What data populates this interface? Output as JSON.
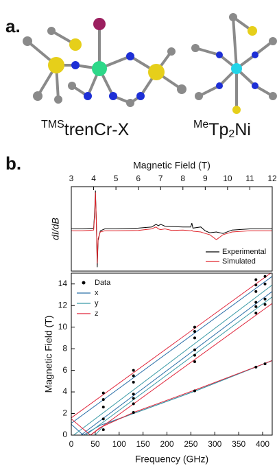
{
  "panels": {
    "a": "a.",
    "b": "b."
  },
  "labels": {
    "left": {
      "sup": "TMS",
      "main": "trenCr-X"
    },
    "right": {
      "sup": "Me",
      "main": "Tp",
      "sub": "2",
      "tail": "Ni"
    }
  },
  "chart_data": [
    {
      "type": "line",
      "xlabel": "Magnetic Field (T)",
      "ylabel": "dI/dB",
      "x": [
        3,
        3.5,
        4.0,
        4.05,
        4.08,
        4.12,
        4.16,
        4.2,
        4.3,
        4.5,
        5,
        6,
        6.6,
        6.8,
        6.9,
        7.0,
        7.2,
        7.5,
        8,
        8.35,
        8.4,
        8.45,
        8.8,
        9.0,
        9.2,
        9.5,
        9.8,
        10.2,
        11,
        12
      ],
      "series": [
        {
          "name": "Experimental",
          "color": "#000000",
          "values": [
            0,
            0,
            0.02,
            0.5,
            1.0,
            0.2,
            -1.0,
            -0.3,
            -0.05,
            0,
            0,
            0.02,
            0.05,
            0.12,
            0.08,
            0.12,
            0.07,
            0.06,
            0.05,
            0.05,
            0.15,
            0.02,
            0.05,
            -0.05,
            -0.1,
            -0.08,
            -0.12,
            -0.03,
            0,
            0
          ]
        },
        {
          "name": "Simulated",
          "color": "#e0262c",
          "values": [
            -0.05,
            -0.05,
            -0.03,
            0.4,
            0.95,
            0.2,
            -0.9,
            -0.25,
            -0.08,
            -0.05,
            -0.05,
            -0.04,
            0.0,
            0.05,
            0.0,
            -0.02,
            0.0,
            -0.04,
            -0.03,
            -0.05,
            -0.04,
            -0.06,
            -0.08,
            -0.12,
            -0.15,
            -0.28,
            -0.15,
            -0.08,
            -0.05,
            -0.05
          ]
        }
      ],
      "xlim": [
        3,
        12
      ],
      "xticks": [
        3,
        4,
        5,
        6,
        7,
        8,
        9,
        10,
        11,
        12
      ],
      "ylim": [
        -1.1,
        1.1
      ],
      "legend": "lower-right"
    },
    {
      "type": "scatter",
      "xlabel": "Frequency (GHz)",
      "ylabel": "Magnetic Field (T)",
      "series": [
        {
          "name": "Data",
          "color": "#000000",
          "x": [
            67,
            67,
            67,
            67,
            67,
            130,
            130,
            130,
            130,
            130,
            130,
            130,
            258,
            258,
            258,
            258,
            258,
            258,
            258,
            386,
            386,
            386,
            386,
            386,
            386,
            386,
            405,
            405,
            405,
            405,
            405
          ],
          "values": [
            3.9,
            3.3,
            2.6,
            1.5,
            0.5,
            6.0,
            5.5,
            4.9,
            3.8,
            3.4,
            2.9,
            2.1,
            10.0,
            9.6,
            9.0,
            7.9,
            7.4,
            6.8,
            4.1,
            14.4,
            13.9,
            13.3,
            12.3,
            11.9,
            11.3,
            6.3,
            14.7,
            14.0,
            12.6,
            12.1,
            6.6
          ]
        },
        {
          "name": "x",
          "color": "#2b6fa8",
          "lines": [
            {
              "x": [
                0,
                420
              ],
              "values": [
                1.1,
                14.7
              ]
            },
            {
              "x": [
                20,
                420
              ],
              "values": [
                0,
                13.3
              ]
            },
            {
              "x": [
                0,
                25,
                60,
                130,
                260,
                420
              ],
              "values": [
                1.0,
                0,
                0.9,
                2.0,
                4.1,
                6.9
              ]
            }
          ]
        },
        {
          "name": "y",
          "color": "#3a9aa6",
          "lines": [
            {
              "x": [
                5,
                420
              ],
              "values": [
                0,
                13.9
              ]
            },
            {
              "x": [
                30,
                420
              ],
              "values": [
                0,
                12.8
              ]
            },
            {
              "x": [
                50,
                70,
                130,
                260,
                420
              ],
              "values": [
                0,
                1.0,
                2.0,
                4.1,
                6.9
              ]
            }
          ]
        },
        {
          "name": "z",
          "color": "#e0263c",
          "lines": [
            {
              "x": [
                0,
                420
              ],
              "values": [
                1.6,
                15.1
              ]
            },
            {
              "x": [
                40,
                420
              ],
              "values": [
                0,
                12.2
              ]
            },
            {
              "x": [
                0,
                40,
                60,
                130,
                260,
                420
              ],
              "values": [
                1.5,
                0,
                0.7,
                2.1,
                4.2,
                6.9
              ]
            }
          ]
        }
      ],
      "xlim": [
        0,
        420
      ],
      "xticks": [
        0,
        50,
        100,
        150,
        200,
        250,
        300,
        350,
        400
      ],
      "ylim": [
        0,
        15
      ],
      "yticks": [
        0,
        2,
        4,
        6,
        8,
        10,
        12,
        14
      ],
      "legend": "upper-left"
    }
  ]
}
